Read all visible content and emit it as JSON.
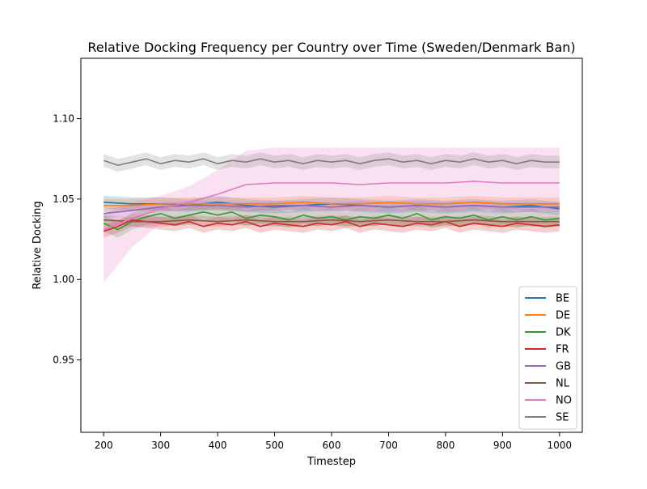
{
  "chart_data": {
    "type": "line",
    "title": "Relative Docking Frequency per Country over Time (Sweden/Denmark Ban)",
    "xlabel": "Timestep",
    "ylabel": "Relative Docking",
    "xlim": [
      160,
      1040
    ],
    "ylim": [
      0.905,
      1.1375
    ],
    "xticks": [
      "200",
      "300",
      "400",
      "500",
      "600",
      "700",
      "800",
      "900",
      "1000"
    ],
    "yticks": [
      "0.95",
      "1.00",
      "1.05",
      "1.10"
    ],
    "grid": false,
    "legend_position": "lower-right",
    "series": [
      {
        "name": "BE",
        "color": "#1f77b4",
        "x": [
          200,
          250,
          300,
          350,
          400,
          450,
          500,
          550,
          600,
          650,
          700,
          750,
          800,
          850,
          900,
          950,
          1000
        ],
        "y": [
          1.048,
          1.047,
          1.047,
          1.046,
          1.048,
          1.046,
          1.045,
          1.046,
          1.047,
          1.046,
          1.045,
          1.046,
          1.045,
          1.046,
          1.045,
          1.046,
          1.044
        ],
        "band": 0.004
      },
      {
        "name": "DE",
        "color": "#ff7f0e",
        "x": [
          200,
          250,
          300,
          350,
          400,
          450,
          500,
          550,
          600,
          650,
          700,
          750,
          800,
          850,
          900,
          950,
          1000
        ],
        "y": [
          1.046,
          1.046,
          1.047,
          1.047,
          1.047,
          1.047,
          1.047,
          1.048,
          1.047,
          1.047,
          1.048,
          1.047,
          1.047,
          1.048,
          1.047,
          1.047,
          1.047
        ],
        "band": 0.004
      },
      {
        "name": "DK",
        "color": "#2ca02c",
        "x": [
          200,
          225,
          250,
          275,
          300,
          325,
          350,
          375,
          400,
          425,
          450,
          475,
          500,
          525,
          550,
          575,
          600,
          625,
          650,
          675,
          700,
          725,
          750,
          775,
          800,
          825,
          850,
          875,
          900,
          925,
          950,
          975,
          1000
        ],
        "y": [
          1.035,
          1.031,
          1.036,
          1.039,
          1.041,
          1.038,
          1.04,
          1.042,
          1.04,
          1.042,
          1.038,
          1.04,
          1.039,
          1.037,
          1.04,
          1.038,
          1.039,
          1.037,
          1.039,
          1.038,
          1.04,
          1.038,
          1.041,
          1.037,
          1.039,
          1.038,
          1.04,
          1.037,
          1.039,
          1.037,
          1.039,
          1.037,
          1.038
        ],
        "band": 0.005
      },
      {
        "name": "FR",
        "color": "#d62728",
        "x": [
          200,
          225,
          250,
          275,
          300,
          325,
          350,
          375,
          400,
          425,
          450,
          475,
          500,
          525,
          550,
          575,
          600,
          625,
          650,
          675,
          700,
          725,
          750,
          775,
          800,
          825,
          850,
          875,
          900,
          925,
          950,
          975,
          1000
        ],
        "y": [
          1.03,
          1.033,
          1.037,
          1.036,
          1.035,
          1.034,
          1.036,
          1.033,
          1.035,
          1.034,
          1.036,
          1.033,
          1.035,
          1.034,
          1.033,
          1.035,
          1.034,
          1.036,
          1.033,
          1.035,
          1.034,
          1.033,
          1.035,
          1.034,
          1.036,
          1.033,
          1.035,
          1.034,
          1.033,
          1.035,
          1.034,
          1.033,
          1.034
        ],
        "band": 0.004
      },
      {
        "name": "GB",
        "color": "#9467bd",
        "x": [
          200,
          250,
          300,
          350,
          400,
          450,
          500,
          550,
          600,
          650,
          700,
          750,
          800,
          850,
          900,
          950,
          1000
        ],
        "y": [
          1.041,
          1.043,
          1.045,
          1.046,
          1.046,
          1.045,
          1.046,
          1.046,
          1.045,
          1.046,
          1.045,
          1.046,
          1.045,
          1.046,
          1.045,
          1.045,
          1.045
        ],
        "band": 0.003
      },
      {
        "name": "NL",
        "color": "#8c564b",
        "x": [
          200,
          250,
          300,
          350,
          400,
          450,
          500,
          550,
          600,
          650,
          700,
          750,
          800,
          850,
          900,
          950,
          1000
        ],
        "y": [
          1.037,
          1.036,
          1.036,
          1.037,
          1.036,
          1.037,
          1.036,
          1.036,
          1.037,
          1.036,
          1.037,
          1.036,
          1.036,
          1.037,
          1.036,
          1.036,
          1.036
        ],
        "band": 0.003
      },
      {
        "name": "NO",
        "color": "#e377c2",
        "x": [
          200,
          250,
          300,
          350,
          400,
          450,
          500,
          550,
          600,
          650,
          700,
          750,
          800,
          850,
          900,
          950,
          1000
        ],
        "y": [
          1.031,
          1.038,
          1.044,
          1.048,
          1.053,
          1.059,
          1.06,
          1.06,
          1.06,
          1.059,
          1.06,
          1.06,
          1.06,
          1.061,
          1.06,
          1.06,
          1.06
        ],
        "band_lower": [
          0.998,
          1.02,
          1.035,
          1.038,
          1.038,
          1.037,
          1.037,
          1.037,
          1.037,
          1.037,
          1.037,
          1.037,
          1.037,
          1.037,
          1.037,
          1.037,
          1.037
        ],
        "band_upper": [
          1.041,
          1.048,
          1.052,
          1.058,
          1.068,
          1.08,
          1.082,
          1.082,
          1.082,
          1.082,
          1.082,
          1.082,
          1.082,
          1.082,
          1.082,
          1.082,
          1.082
        ]
      },
      {
        "name": "SE",
        "color": "#7f7f7f",
        "x": [
          200,
          225,
          250,
          275,
          300,
          325,
          350,
          375,
          400,
          425,
          450,
          475,
          500,
          525,
          550,
          575,
          600,
          625,
          650,
          675,
          700,
          725,
          750,
          775,
          800,
          825,
          850,
          875,
          900,
          925,
          950,
          975,
          1000
        ],
        "y": [
          1.074,
          1.071,
          1.073,
          1.075,
          1.072,
          1.074,
          1.073,
          1.075,
          1.072,
          1.074,
          1.073,
          1.075,
          1.073,
          1.074,
          1.072,
          1.074,
          1.073,
          1.074,
          1.072,
          1.074,
          1.075,
          1.073,
          1.074,
          1.072,
          1.074,
          1.073,
          1.075,
          1.073,
          1.074,
          1.072,
          1.074,
          1.073,
          1.073
        ],
        "band": 0.004
      }
    ]
  }
}
